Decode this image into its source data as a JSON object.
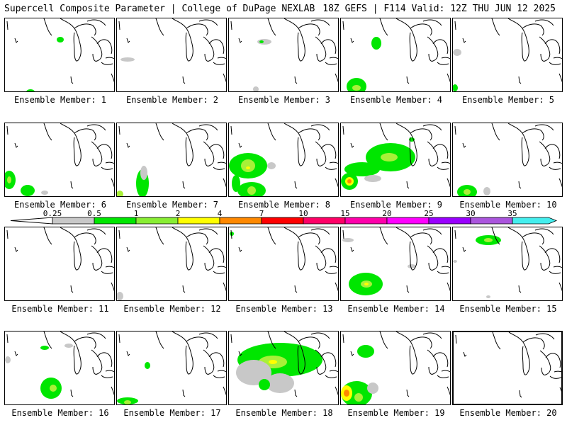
{
  "header": {
    "title": "Supercell Composite Parameter | College of DuPage NEXLAB",
    "run_info": "18Z GEFS | F114 Valid: 12Z THU JUN 12 2025"
  },
  "panel_label_template": "Ensemble Member: ",
  "members": [
    {
      "n": "1",
      "blobs": [
        [
          78,
          30,
          5,
          4,
          1
        ],
        [
          36,
          104,
          6,
          4,
          1
        ]
      ]
    },
    {
      "n": "2",
      "blobs": [
        [
          15,
          58,
          10,
          3,
          0
        ]
      ]
    },
    {
      "n": "3",
      "blobs": [
        [
          50,
          33,
          10,
          4,
          0
        ],
        [
          46,
          33,
          3,
          2,
          1
        ],
        [
          38,
          100,
          4,
          4,
          0
        ]
      ]
    },
    {
      "n": "4",
      "blobs": [
        [
          50,
          35,
          7,
          9,
          1
        ],
        [
          22,
          96,
          14,
          12,
          1
        ],
        [
          22,
          98,
          6,
          4,
          2
        ]
      ]
    },
    {
      "n": "5",
      "blobs": [
        [
          6,
          48,
          6,
          5,
          0
        ],
        [
          3,
          98,
          4,
          5,
          1
        ]
      ]
    },
    {
      "n": "6",
      "blobs": [
        [
          6,
          80,
          9,
          13,
          1
        ],
        [
          6,
          80,
          3,
          5,
          2
        ],
        [
          32,
          95,
          10,
          8,
          1
        ],
        [
          56,
          98,
          5,
          3,
          0
        ]
      ]
    },
    {
      "n": "7",
      "blobs": [
        [
          36,
          85,
          9,
          20,
          1
        ],
        [
          38,
          70,
          5,
          10,
          0
        ],
        [
          4,
          100,
          5,
          5,
          2
        ]
      ]
    },
    {
      "n": "8",
      "blobs": [
        [
          27,
          60,
          27,
          18,
          1
        ],
        [
          27,
          60,
          10,
          9,
          2
        ],
        [
          27,
          63,
          3,
          2,
          3
        ],
        [
          32,
          95,
          20,
          12,
          1
        ],
        [
          32,
          95,
          6,
          6,
          2
        ],
        [
          10,
          85,
          6,
          12,
          1
        ],
        [
          60,
          60,
          6,
          5,
          0
        ]
      ]
    },
    {
      "n": "9",
      "blobs": [
        [
          70,
          48,
          35,
          20,
          1
        ],
        [
          68,
          48,
          12,
          6,
          2
        ],
        [
          12,
          82,
          12,
          12,
          1
        ],
        [
          12,
          82,
          6,
          6,
          3
        ],
        [
          12,
          82,
          3,
          3,
          4
        ],
        [
          30,
          65,
          25,
          10,
          1
        ],
        [
          45,
          78,
          12,
          5,
          0
        ],
        [
          100,
          23,
          4,
          3,
          1
        ]
      ]
    },
    {
      "n": "10",
      "blobs": [
        [
          20,
          97,
          14,
          10,
          1
        ],
        [
          20,
          97,
          5,
          4,
          2
        ],
        [
          48,
          96,
          5,
          6,
          0
        ]
      ]
    },
    {
      "n": "11",
      "blobs": []
    },
    {
      "n": "12",
      "blobs": [
        [
          4,
          97,
          5,
          6,
          0
        ]
      ]
    },
    {
      "n": "13",
      "blobs": [
        [
          4,
          9,
          3,
          3,
          1
        ]
      ]
    },
    {
      "n": "14",
      "blobs": [
        [
          35,
          80,
          24,
          16,
          1
        ],
        [
          36,
          80,
          8,
          5,
          2
        ],
        [
          36,
          80,
          3,
          2,
          3
        ],
        [
          10,
          18,
          8,
          3,
          0
        ],
        [
          100,
          55,
          6,
          3,
          0
        ]
      ]
    },
    {
      "n": "15",
      "blobs": [
        [
          50,
          18,
          18,
          7,
          1
        ],
        [
          50,
          18,
          6,
          3,
          2
        ],
        [
          3,
          48,
          3,
          2,
          0
        ],
        [
          50,
          98,
          3,
          2,
          0
        ]
      ]
    },
    {
      "n": "16",
      "blobs": [
        [
          65,
          80,
          15,
          15,
          1
        ],
        [
          68,
          80,
          5,
          5,
          2
        ],
        [
          56,
          23,
          6,
          3,
          1
        ],
        [
          4,
          40,
          4,
          5,
          0
        ],
        [
          90,
          20,
          6,
          3,
          0
        ]
      ]
    },
    {
      "n": "17",
      "blobs": [
        [
          43,
          48,
          4,
          5,
          1
        ],
        [
          15,
          98,
          15,
          5,
          1
        ],
        [
          15,
          100,
          5,
          3,
          2
        ]
      ]
    },
    {
      "n": "18",
      "blobs": [
        [
          72,
          40,
          60,
          24,
          1
        ],
        [
          62,
          43,
          20,
          9,
          2
        ],
        [
          62,
          43,
          6,
          3,
          3
        ],
        [
          35,
          58,
          25,
          18,
          0
        ],
        [
          72,
          73,
          20,
          14,
          0
        ],
        [
          120,
          40,
          12,
          7,
          1
        ],
        [
          50,
          75,
          8,
          8,
          1
        ]
      ]
    },
    {
      "n": "19",
      "blobs": [
        [
          22,
          88,
          22,
          18,
          1
        ],
        [
          8,
          87,
          8,
          11,
          3
        ],
        [
          8,
          87,
          4,
          5,
          4
        ],
        [
          25,
          93,
          6,
          6,
          2
        ],
        [
          35,
          28,
          12,
          9,
          1
        ],
        [
          45,
          80,
          8,
          8,
          0
        ]
      ]
    },
    {
      "n": "20",
      "blobs": []
    }
  ],
  "colorbar": {
    "thresholds": [
      "0.25",
      "0.5",
      "1",
      "2",
      "4",
      "7",
      "10",
      "15",
      "20",
      "25",
      "30",
      "35"
    ],
    "colors": [
      "#c8c8c8",
      "#00e600",
      "#88ee33",
      "#ffff00",
      "#ff8800",
      "#ff0000",
      "#ff0066",
      "#ff00aa",
      "#ff00ff",
      "#9900ff",
      "#aa55dd",
      "#44eeee"
    ]
  },
  "legend": {
    "fill_colors": [
      "#c8c8c8",
      "#00e600",
      "#a8f038",
      "#ffff00",
      "#ff8800"
    ]
  }
}
